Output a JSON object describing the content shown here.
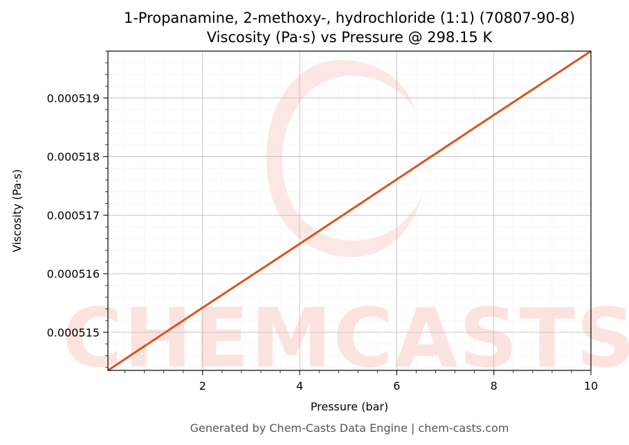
{
  "chart_data": {
    "type": "line",
    "title": "1-Propanamine, 2-methoxy-, hydrochloride (1:1) (70807-90-8)",
    "subtitle": "Viscosity (Pa·s) vs Pressure @ 298.15 K",
    "xlabel": "Pressure (bar)",
    "ylabel": "Viscosity (Pa·s)",
    "xlim": [
      0.05,
      10
    ],
    "ylim": [
      0.00051435,
      0.0005198
    ],
    "xticks": [
      2,
      4,
      6,
      8,
      10
    ],
    "xtick_labels": [
      "2",
      "4",
      "6",
      "8",
      "10"
    ],
    "yticks": [
      0.000515,
      0.000516,
      0.000517,
      0.000518,
      0.000519
    ],
    "ytick_labels": [
      "0.000515",
      "0.000516",
      "0.000517",
      "0.000518",
      "0.000519"
    ],
    "grid": true,
    "series": [
      {
        "color": "#d9531e",
        "x": [
          0.05,
          2,
          4,
          6,
          8,
          10
        ],
        "y": [
          0.00051435,
          0.00051542,
          0.00051651,
          0.00051761,
          0.00051871,
          0.0005198
        ]
      }
    ]
  },
  "watermark": {
    "text": "CHEMCASTS"
  },
  "footer": "Generated by Chem-Casts Data Engine | chem-casts.com"
}
